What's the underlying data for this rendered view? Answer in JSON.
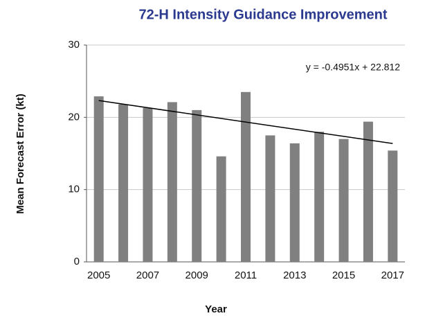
{
  "chart_data": {
    "type": "bar",
    "title": "72-H Intensity Guidance Improvement",
    "x_label": "Year",
    "y_label": "Mean Forecast Error (kt)",
    "categories": [
      "2005",
      null,
      "2007",
      null,
      "2009",
      null,
      "2011",
      null,
      "2013",
      null,
      "2015",
      null,
      "2017"
    ],
    "values": [
      22.9,
      21.8,
      21.3,
      22.1,
      21.0,
      14.6,
      23.5,
      17.5,
      16.4,
      18.0,
      17.0,
      19.4,
      15.4
    ],
    "color": "#808080",
    "ylim": [
      0,
      30
    ],
    "yticks": [
      0,
      10,
      20,
      30
    ],
    "grid": true,
    "trendline": {
      "label": "y = -0.4951x + 22.812",
      "slope": -0.4951,
      "intercept": 22.812,
      "color": "#000000"
    }
  }
}
